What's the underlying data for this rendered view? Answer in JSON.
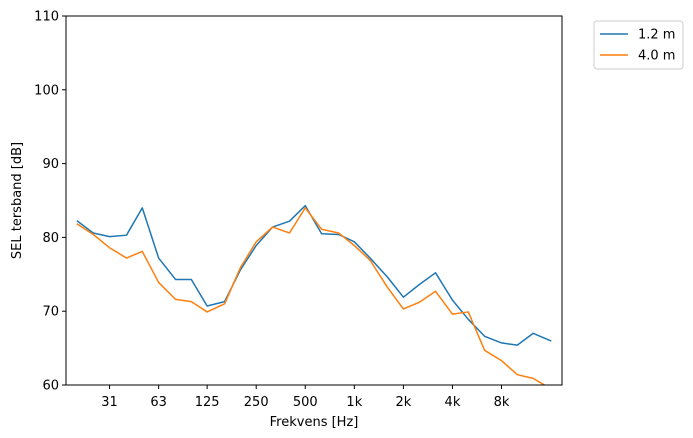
{
  "chart_data": {
    "type": "line",
    "title": "",
    "xlabel": "Frekvens [Hz]",
    "ylabel": "SEL tersband [dB]",
    "ylim": [
      60,
      110
    ],
    "yticks": [
      60,
      70,
      80,
      90,
      100,
      110
    ],
    "x": [
      20,
      25,
      31.5,
      40,
      50,
      63,
      80,
      100,
      125,
      160,
      200,
      250,
      315,
      400,
      500,
      630,
      800,
      1000,
      1250,
      1600,
      2000,
      2500,
      3150,
      4000,
      5000,
      6300,
      8000,
      10000,
      12500,
      16000
    ],
    "xticks": [
      31.5,
      63,
      125,
      250,
      500,
      1000,
      2000,
      4000,
      8000
    ],
    "xtick_labels": [
      "31",
      "63",
      "125",
      "250",
      "500",
      "1k",
      "2k",
      "4k",
      "8k"
    ],
    "grid": false,
    "legend_position": "outside-top-right",
    "series": [
      {
        "name": "1.2 m",
        "color": "#1f77b4",
        "values": [
          82.2,
          80.6,
          80.1,
          80.3,
          84.0,
          77.2,
          74.3,
          74.3,
          70.7,
          71.3,
          75.6,
          78.9,
          81.4,
          82.2,
          84.3,
          80.5,
          80.4,
          79.4,
          77.2,
          74.6,
          71.9,
          73.6,
          75.2,
          71.5,
          68.9,
          66.6,
          65.7,
          65.4,
          67.0,
          66.0
        ]
      },
      {
        "name": "4.0 m",
        "color": "#ff7f0e",
        "values": [
          81.8,
          80.4,
          78.6,
          77.2,
          78.1,
          73.9,
          71.6,
          71.3,
          69.9,
          71.0,
          75.9,
          79.4,
          81.4,
          80.6,
          84.0,
          81.1,
          80.6,
          78.9,
          76.9,
          73.2,
          70.3,
          71.2,
          72.7,
          69.6,
          69.9,
          64.7,
          63.3,
          61.4,
          60.9,
          59.5
        ]
      }
    ]
  }
}
